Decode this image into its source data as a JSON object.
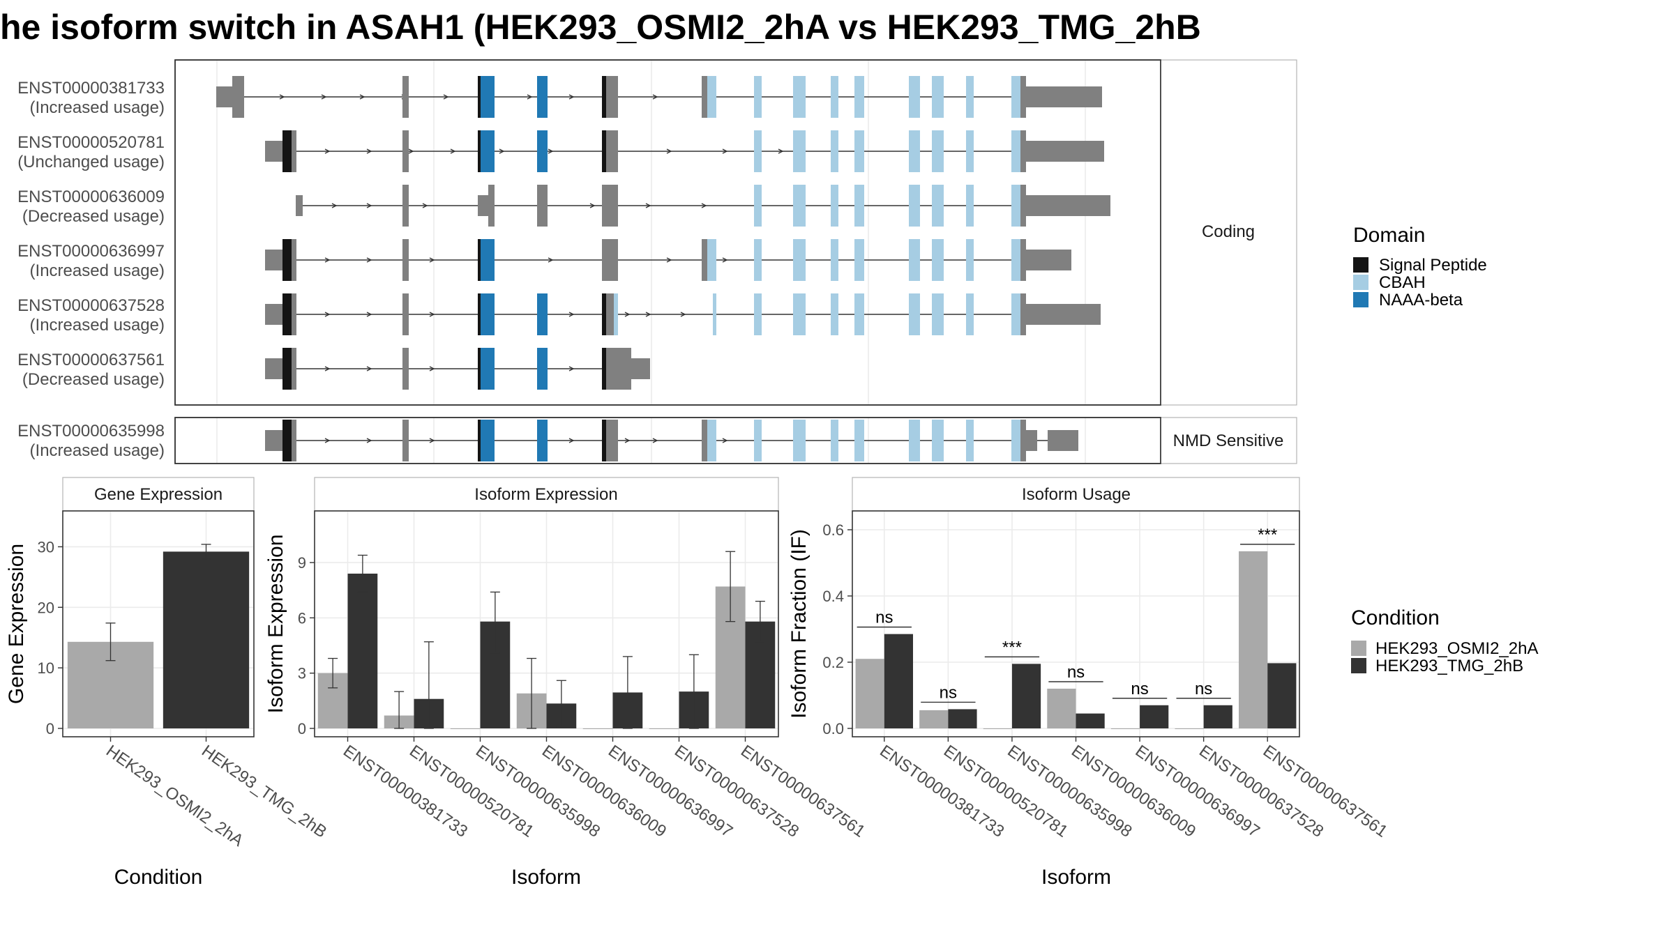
{
  "title": "he isoform switch in ASAH1 (HEK293_OSMI2_2hA vs HEK293_TMG_2hB",
  "colors": {
    "utr": "#808080",
    "cds": "#808080",
    "signal_peptide": "#141414",
    "cbah": "#a6cde3",
    "naaa_beta": "#2079b4",
    "cond_a": "#a9a9a9",
    "cond_b": "#333333"
  },
  "structure": {
    "groups": [
      {
        "label": "Coding",
        "isoforms": [
          {
            "id": "ENST00000381733",
            "usage": "(Increased usage)"
          },
          {
            "id": "ENST00000520781",
            "usage": "(Unchanged usage)"
          },
          {
            "id": "ENST00000636009",
            "usage": "(Decreased usage)"
          },
          {
            "id": "ENST00000636997",
            "usage": "(Increased usage)"
          },
          {
            "id": "ENST00000637528",
            "usage": "(Increased usage)"
          },
          {
            "id": "ENST00000637561",
            "usage": "(Decreased usage)"
          }
        ]
      },
      {
        "label": "NMD Sensitive",
        "isoforms": [
          {
            "id": "ENST00000635998",
            "usage": "(Increased usage)"
          }
        ]
      }
    ]
  },
  "domain_legend": {
    "title": "Domain",
    "items": [
      {
        "label": "Signal Peptide",
        "color": "#141414"
      },
      {
        "label": "CBAH",
        "color": "#a6cde3"
      },
      {
        "label": "NAAA-beta",
        "color": "#2079b4"
      }
    ]
  },
  "condition_legend": {
    "title": "Condition",
    "items": [
      {
        "label": "HEK293_OSMI2_2hA",
        "color": "#a9a9a9"
      },
      {
        "label": "HEK293_TMG_2hB",
        "color": "#333333"
      }
    ]
  },
  "chart_data": [
    {
      "type": "bar",
      "title": "Gene Expression",
      "xlabel": "Condition",
      "ylabel": "Gene Expression",
      "ylim": [
        0,
        35
      ],
      "yticks": [
        0,
        10,
        20,
        30
      ],
      "categories": [
        "HEK293_OSMI2_2hA",
        "HEK293_TMG_2hB"
      ],
      "values": [
        14.3,
        29.2
      ],
      "errors": [
        [
          11.2,
          17.4
        ],
        [
          28.0,
          30.4
        ]
      ]
    },
    {
      "type": "bar",
      "title": "Isoform Expression",
      "xlabel": "Isoform",
      "ylabel": "Isoform Expression",
      "ylim": [
        0,
        11.5
      ],
      "yticks": [
        0,
        3,
        6,
        9
      ],
      "categories": [
        "ENST00000381733",
        "ENST00000520781",
        "ENST00000635998",
        "ENST00000636009",
        "ENST00000636997",
        "ENST00000637528",
        "ENST00000637561"
      ],
      "series": [
        {
          "name": "HEK293_OSMI2_2hA",
          "values": [
            3.0,
            0.7,
            0.0,
            1.9,
            0.0,
            0.0,
            7.7
          ],
          "errors": [
            [
              2.2,
              3.8
            ],
            [
              0.0,
              2.0
            ],
            [
              0.0,
              0.0
            ],
            [
              0.0,
              3.8
            ],
            [
              0.0,
              0.0
            ],
            [
              0.0,
              0.0
            ],
            [
              5.8,
              9.6
            ]
          ]
        },
        {
          "name": "HEK293_TMG_2hB",
          "values": [
            8.4,
            1.6,
            5.8,
            1.35,
            1.95,
            2.0,
            5.8
          ],
          "errors": [
            [
              7.4,
              9.4
            ],
            [
              0.0,
              4.7
            ],
            [
              4.1,
              7.4
            ],
            [
              0.1,
              2.6
            ],
            [
              0.0,
              3.9
            ],
            [
              0.0,
              4.0
            ],
            [
              4.7,
              6.9
            ]
          ]
        }
      ]
    },
    {
      "type": "bar",
      "title": "Isoform Usage",
      "xlabel": "Isoform",
      "ylabel": "Isoform Fraction (IF)",
      "ylim": [
        0,
        0.64
      ],
      "yticks": [
        "0.0",
        "0.2",
        "0.4",
        "0.6"
      ],
      "categories": [
        "ENST00000381733",
        "ENST00000520781",
        "ENST00000635998",
        "ENST00000636009",
        "ENST00000636997",
        "ENST00000637528",
        "ENST00000637561"
      ],
      "series": [
        {
          "name": "HEK293_OSMI2_2hA",
          "values": [
            0.21,
            0.055,
            0.0,
            0.12,
            0.0,
            0.0,
            0.535
          ]
        },
        {
          "name": "HEK293_TMG_2hB",
          "values": [
            0.285,
            0.058,
            0.195,
            0.045,
            0.07,
            0.07,
            0.197
          ]
        }
      ],
      "annotations": [
        "ns",
        "ns",
        "***",
        "ns",
        "ns",
        "ns",
        "***"
      ]
    }
  ]
}
